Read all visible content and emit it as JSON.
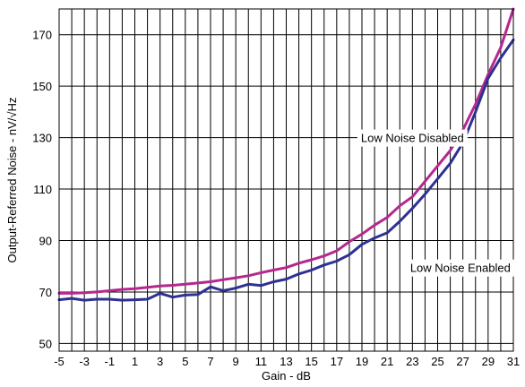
{
  "chart_data": {
    "type": "line",
    "title": "",
    "xlabel": "Gain - dB",
    "ylabel": "Output-Referred Noise - nV/√Hz",
    "xlim": [
      -5,
      31
    ],
    "ylim": [
      47,
      180
    ],
    "xticks": [
      -5,
      -3,
      -1,
      1,
      3,
      5,
      7,
      9,
      11,
      13,
      15,
      17,
      19,
      21,
      23,
      25,
      27,
      29,
      31
    ],
    "yticks": [
      50,
      70,
      90,
      110,
      130,
      150,
      170
    ],
    "grid": true,
    "series": [
      {
        "name": "Low Noise Disabled",
        "color": "#b5288e",
        "x": [
          -5,
          -4,
          -3,
          -2,
          -1,
          0,
          1,
          2,
          3,
          4,
          5,
          6,
          7,
          8,
          9,
          10,
          11,
          12,
          13,
          14,
          15,
          16,
          17,
          18,
          19,
          20,
          21,
          22,
          23,
          24,
          25,
          26,
          27,
          28,
          29,
          30,
          31
        ],
        "y": [
          69.5,
          69.5,
          69.7,
          70,
          70.5,
          71,
          71.3,
          71.8,
          72.3,
          72.6,
          73,
          73.5,
          74,
          74.8,
          75.5,
          76.3,
          77.5,
          78.5,
          79.5,
          81.2,
          82.5,
          84,
          86,
          89.5,
          92.5,
          96,
          99,
          103.5,
          107,
          113,
          119,
          125,
          133,
          143,
          154.5,
          165,
          180
        ]
      },
      {
        "name": "Low Noise Enabled",
        "color": "#2e3192",
        "x": [
          -5,
          -4,
          -3,
          -2,
          -1,
          0,
          1,
          2,
          3,
          4,
          5,
          6,
          7,
          8,
          9,
          10,
          11,
          12,
          13,
          14,
          15,
          16,
          17,
          18,
          19,
          20,
          21,
          22,
          23,
          24,
          25,
          26,
          27,
          28,
          29,
          30,
          31
        ],
        "y": [
          67,
          67.5,
          66.8,
          67.2,
          67.2,
          66.8,
          67,
          67.2,
          69.5,
          68,
          68.8,
          69,
          72,
          70.5,
          71.5,
          73,
          72.5,
          74,
          75,
          77,
          78.5,
          80.5,
          82,
          84.5,
          88.5,
          91,
          93,
          97.5,
          102.5,
          108,
          114,
          120,
          128,
          140,
          153,
          161,
          168
        ]
      }
    ],
    "annotations": [
      {
        "text": "Low Noise Disabled",
        "x": 23,
        "y": 130
      },
      {
        "text": "Low Noise Enabled",
        "x": 26.8,
        "y": 79.5
      }
    ]
  }
}
